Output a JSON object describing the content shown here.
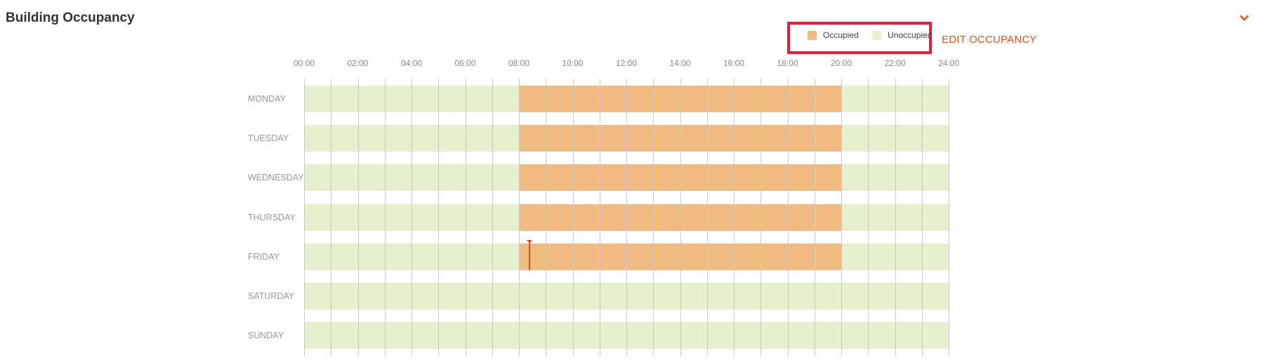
{
  "header": {
    "title": "Building Occupancy",
    "collapse_icon": "chevron-down-icon"
  },
  "legend": {
    "items": [
      {
        "label": "Occupied",
        "color": "#f0bb80"
      },
      {
        "label": "Unoccupied",
        "color": "#e6f0cf"
      }
    ],
    "highlight_color": "#e0203a"
  },
  "actions": {
    "edit_label": "EDIT OCCUPANCY",
    "edit_color": "#e8501f"
  },
  "chart_data": {
    "type": "timeline",
    "x_ticks": [
      "00:00",
      "02:00",
      "04:00",
      "06:00",
      "08:00",
      "10:00",
      "12:00",
      "14:00",
      "16:00",
      "18:00",
      "20:00",
      "22:00",
      "24:00"
    ],
    "x_range_hours": [
      0,
      24
    ],
    "days": [
      {
        "label": "MONDAY",
        "occupied": [
          [
            8,
            20
          ]
        ]
      },
      {
        "label": "TUESDAY",
        "occupied": [
          [
            8,
            20
          ]
        ]
      },
      {
        "label": "WEDNESDAY",
        "occupied": [
          [
            8,
            20
          ]
        ]
      },
      {
        "label": "THURSDAY",
        "occupied": [
          [
            8,
            20
          ]
        ]
      },
      {
        "label": "FRIDAY",
        "occupied": [
          [
            8,
            20
          ]
        ]
      },
      {
        "label": "SATURDAY",
        "occupied": []
      },
      {
        "label": "SUNDAY",
        "occupied": []
      }
    ],
    "current_time_marker": {
      "day_index": 4,
      "hour": 8.4,
      "color": "#e8501f"
    },
    "grid": true
  }
}
